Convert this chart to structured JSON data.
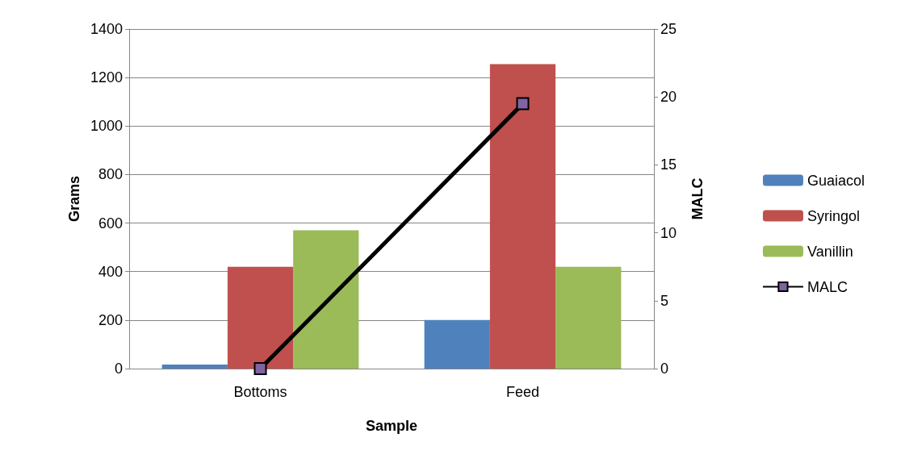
{
  "chart_data": {
    "type": "bar",
    "xlabel": "Sample",
    "ylabel": "Grams",
    "y2label": "MALC",
    "categories": [
      "Bottoms",
      "Feed"
    ],
    "series": [
      {
        "name": "Guaiacol",
        "color": "#4f81bd",
        "values": [
          17,
          200
        ]
      },
      {
        "name": "Syringol",
        "color": "#c0504d",
        "values": [
          420,
          1255
        ]
      },
      {
        "name": "Vanillin",
        "color": "#9bbb59",
        "values": [
          570,
          420
        ]
      },
      {
        "name": "MALC",
        "type": "line",
        "axis": "y2",
        "color": "#000000",
        "marker": "square",
        "line_style": "solid",
        "values": [
          0,
          19.5
        ]
      }
    ],
    "ylim": [
      0,
      1400
    ],
    "yticks": [
      0,
      200,
      400,
      600,
      800,
      1000,
      1200,
      1400
    ],
    "y2lim": [
      0,
      25
    ],
    "y2ticks": [
      0,
      5,
      10,
      15,
      20,
      25
    ],
    "grid": "y",
    "legend": "right"
  }
}
